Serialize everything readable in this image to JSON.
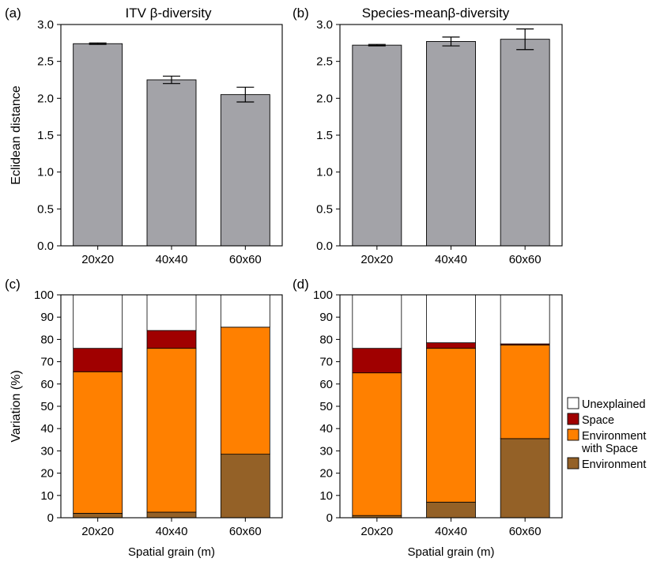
{
  "chart_data": [
    {
      "panel": "(a)",
      "type": "bar",
      "title": "ITV β-diversity",
      "ylabel": "Eclidean distance",
      "xlabel": "",
      "categories": [
        "20x20",
        "40x40",
        "60x60"
      ],
      "values": [
        2.74,
        2.25,
        2.05
      ],
      "error": [
        0.01,
        0.05,
        0.1
      ],
      "ylim": [
        0,
        3.0
      ],
      "yticks": [
        "0.0",
        "0.5",
        "1.0",
        "1.5",
        "2.0",
        "2.5",
        "3.0"
      ],
      "bar_color": "#a3a3a8"
    },
    {
      "panel": "(b)",
      "type": "bar",
      "title": "Species-meanβ-diversity",
      "ylabel": "",
      "xlabel": "",
      "categories": [
        "20x20",
        "40x40",
        "60x60"
      ],
      "values": [
        2.72,
        2.77,
        2.8
      ],
      "error": [
        0.01,
        0.06,
        0.14
      ],
      "ylim": [
        0,
        3.0
      ],
      "yticks": [
        "0.0",
        "0.5",
        "1.0",
        "1.5",
        "2.0",
        "2.5",
        "3.0"
      ],
      "bar_color": "#a3a3a8"
    },
    {
      "panel": "(c)",
      "type": "bar",
      "stacked": true,
      "title": "",
      "ylabel": "Variation (%)",
      "xlabel": "Spatial grain (m)",
      "categories": [
        "20x20",
        "40x40",
        "60x60"
      ],
      "ylim": [
        0,
        100
      ],
      "yticks": [
        "0",
        "10",
        "20",
        "30",
        "40",
        "50",
        "60",
        "70",
        "80",
        "90",
        "100"
      ],
      "series": [
        {
          "name": "Environment",
          "color": "#946127",
          "values": [
            2,
            2.5,
            28.5
          ]
        },
        {
          "name": "Environment with Space",
          "color": "#ff8000",
          "values": [
            63.5,
            73.5,
            57
          ]
        },
        {
          "name": "Space",
          "color": "#a00000",
          "values": [
            10.5,
            8,
            0
          ]
        },
        {
          "name": "Unexplained",
          "color": "#ffffff",
          "values": [
            24,
            16,
            14.5
          ]
        }
      ]
    },
    {
      "panel": "(d)",
      "type": "bar",
      "stacked": true,
      "title": "",
      "ylabel": "",
      "xlabel": "Spatial grain (m)",
      "categories": [
        "20x20",
        "40x40",
        "60x60"
      ],
      "ylim": [
        0,
        100
      ],
      "yticks": [
        "0",
        "10",
        "20",
        "30",
        "40",
        "50",
        "60",
        "70",
        "80",
        "90",
        "100"
      ],
      "series": [
        {
          "name": "Environment",
          "color": "#946127",
          "values": [
            1,
            7,
            35.5
          ]
        },
        {
          "name": "Environment with Space",
          "color": "#ff8000",
          "values": [
            64,
            69,
            42
          ]
        },
        {
          "name": "Space",
          "color": "#a00000",
          "values": [
            11,
            2.5,
            0.5
          ]
        },
        {
          "name": "Unexplained",
          "color": "#ffffff",
          "values": [
            24,
            21.5,
            22
          ]
        }
      ]
    }
  ],
  "legend": {
    "placement": "right",
    "items": [
      {
        "label": "Unexplained",
        "color": "#ffffff"
      },
      {
        "label": "Space",
        "color": "#a00000"
      },
      {
        "label": "Environment with Space",
        "lines": [
          "Environment",
          "with Space"
        ],
        "color": "#ff8000"
      },
      {
        "label": "Environment",
        "color": "#946127"
      }
    ]
  }
}
